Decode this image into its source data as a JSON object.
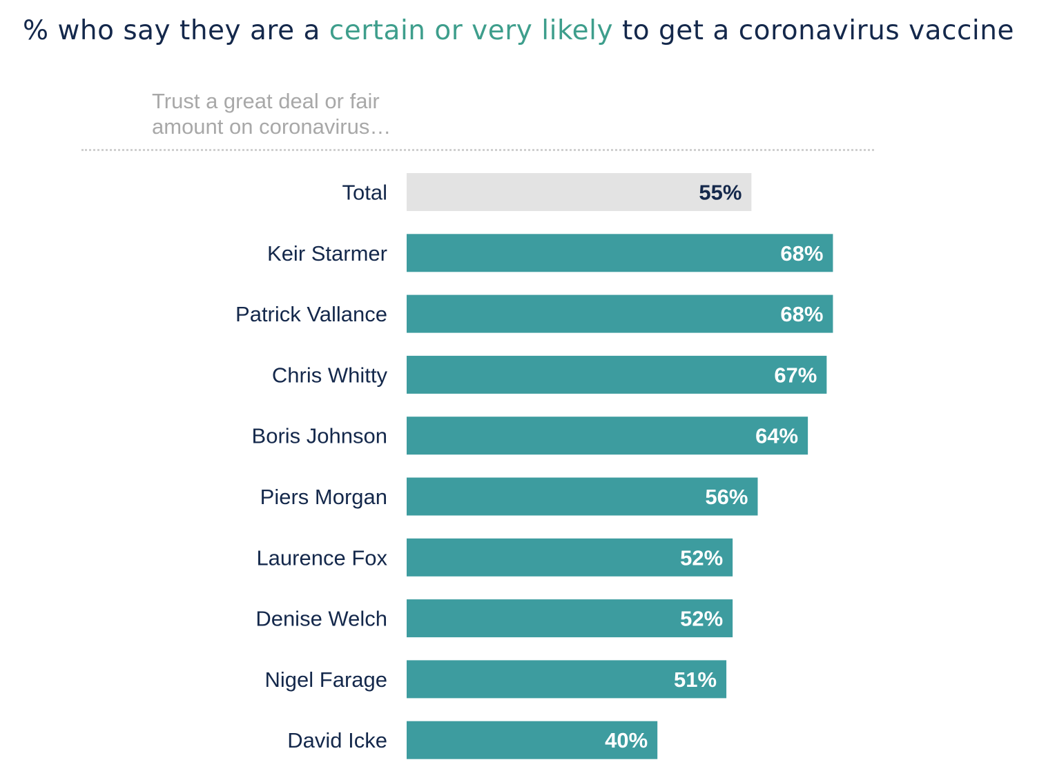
{
  "chart_data": {
    "type": "bar",
    "orientation": "horizontal",
    "title": {
      "prefix": "% who say they are a ",
      "highlight": "certain or very likely",
      "suffix": " to get a coronavirus vaccine"
    },
    "subtitle": [
      "Trust a great deal or fair",
      "amount on coronavirus…"
    ],
    "categories": [
      "Total",
      "Keir Starmer",
      "Patrick Vallance",
      "Chris Whitty",
      "Boris Johnson",
      "Piers Morgan",
      "Laurence Fox",
      "Denise Welch",
      "Nigel Farage",
      "David Icke"
    ],
    "values": [
      55,
      68,
      68,
      67,
      64,
      56,
      52,
      52,
      51,
      40
    ],
    "value_labels": [
      "55%",
      "68%",
      "68%",
      "67%",
      "64%",
      "56%",
      "52%",
      "52%",
      "51%",
      "40%"
    ],
    "xlim": [
      0,
      100
    ],
    "grid": false,
    "colors": {
      "total_bar": "#e3e3e3",
      "bar": "#3d9c9f",
      "total_label": "#14284b",
      "bar_label": "#ffffff",
      "category_label": "#14284b",
      "title": "#14284b",
      "title_highlight": "#3e9e8c",
      "subtitle": "#a8a8a8"
    }
  }
}
